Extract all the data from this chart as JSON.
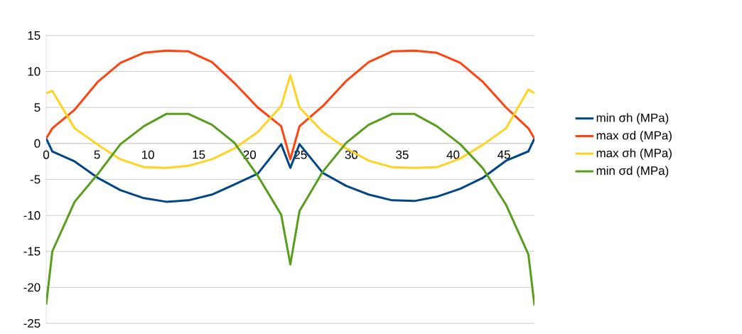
{
  "chart_data": {
    "type": "line",
    "xlim": [
      0,
      48
    ],
    "ylim": [
      -25,
      15
    ],
    "xticks": [
      0,
      5,
      10,
      15,
      20,
      25,
      30,
      35,
      40,
      45
    ],
    "yticks": [
      -25,
      -20,
      -15,
      -10,
      -5,
      0,
      5,
      10,
      15
    ],
    "grid": "y",
    "legend": "right",
    "marker": "none",
    "line_style": "solid",
    "x": [
      0,
      0.6,
      2.8,
      5.1,
      7.3,
      9.6,
      11.8,
      14.0,
      16.3,
      18.5,
      20.8,
      23.1,
      24.0,
      24.9,
      27.2,
      29.5,
      31.7,
      34.0,
      36.2,
      38.4,
      40.7,
      42.9,
      45.2,
      47.4,
      48
    ],
    "series": [
      {
        "name": "min σh (MPa)",
        "color": "#004586",
        "values": [
          0.7,
          -1.1,
          -2.5,
          -4.8,
          -6.5,
          -7.6,
          -8.1,
          -7.9,
          -7.1,
          -5.7,
          -4.2,
          -0.1,
          -3.4,
          -0.1,
          -4.1,
          -5.9,
          -7.1,
          -7.9,
          -8.0,
          -7.4,
          -6.3,
          -4.8,
          -2.4,
          -1.1,
          0.7
        ]
      },
      {
        "name": "max σd (MPa)",
        "color": "#ff420e",
        "values": [
          0.7,
          2.1,
          4.7,
          8.6,
          11.2,
          12.6,
          12.9,
          12.8,
          11.3,
          8.4,
          5.0,
          2.4,
          -2.2,
          2.4,
          5.2,
          8.7,
          11.3,
          12.8,
          12.9,
          12.6,
          11.2,
          8.6,
          5.0,
          2.1,
          0.7
        ]
      },
      {
        "name": "max σh (MPa)",
        "color": "#ffd320",
        "values": [
          7.0,
          7.3,
          2.1,
          -0.2,
          -2.2,
          -3.3,
          -3.4,
          -3.1,
          -2.2,
          -0.7,
          1.6,
          5.2,
          9.5,
          5.0,
          1.6,
          -0.7,
          -2.4,
          -3.3,
          -3.4,
          -3.3,
          -2.1,
          -0.2,
          2.1,
          7.5,
          7.0
        ]
      },
      {
        "name": "min σd (MPa)",
        "color": "#579d1c",
        "values": [
          -22.4,
          -15.0,
          -8.1,
          -4.2,
          -0.1,
          2.4,
          4.1,
          4.1,
          2.6,
          0.1,
          -4.5,
          -9.9,
          -16.8,
          -9.4,
          -3.9,
          0.1,
          2.6,
          4.1,
          4.1,
          2.4,
          -0.1,
          -3.4,
          -8.5,
          -15.4,
          -22.5
        ]
      }
    ]
  }
}
